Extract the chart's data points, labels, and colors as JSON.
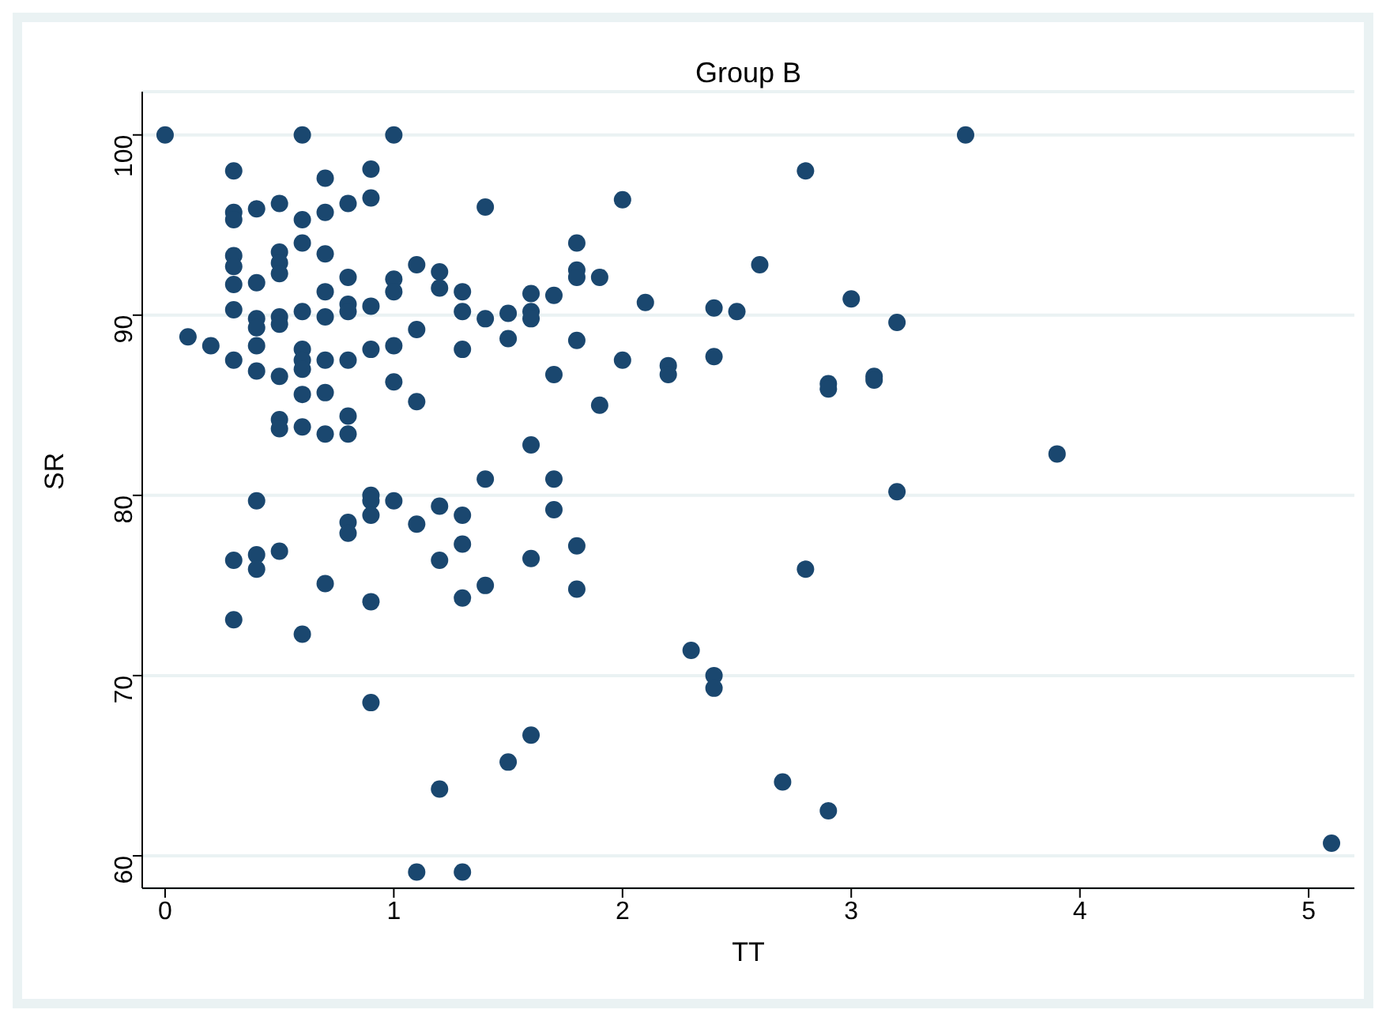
{
  "chart_data": {
    "type": "scatter",
    "title": "Group B",
    "xlabel": "TT",
    "ylabel": "SR",
    "x": [
      0,
      0.1,
      0.2,
      0.3,
      0.3,
      0.3,
      0.3,
      0.3,
      0.3,
      0.3,
      0.3,
      0.3,
      0.3,
      0.4,
      0.4,
      0.4,
      0.4,
      0.4,
      0.4,
      0.4,
      0.4,
      0.4,
      0.5,
      0.5,
      0.5,
      0.5,
      0.5,
      0.5,
      0.5,
      0.5,
      0.5,
      0.5,
      0.6,
      0.6,
      0.6,
      0.6,
      0.6,
      0.6,
      0.6,
      0.6,
      0.6,
      0.6,
      0.7,
      0.7,
      0.7,
      0.7,
      0.7,
      0.7,
      0.7,
      0.7,
      0.7,
      0.8,
      0.8,
      0.8,
      0.8,
      0.8,
      0.8,
      0.8,
      0.8,
      0.8,
      0.9,
      0.9,
      0.9,
      0.9,
      0.9,
      0.9,
      0.9,
      0.9,
      0.9,
      1.0,
      1.0,
      1.0,
      1.0,
      1.0,
      1.0,
      1.1,
      1.1,
      1.1,
      1.1,
      1.1,
      1.2,
      1.2,
      1.2,
      1.2,
      1.2,
      1.3,
      1.3,
      1.3,
      1.3,
      1.3,
      1.3,
      1.3,
      1.4,
      1.4,
      1.4,
      1.4,
      1.5,
      1.5,
      1.5,
      1.6,
      1.6,
      1.6,
      1.6,
      1.6,
      1.6,
      1.7,
      1.7,
      1.7,
      1.7,
      1.8,
      1.8,
      1.8,
      1.8,
      1.8,
      1.8,
      1.9,
      1.9,
      2.0,
      2.0,
      2.1,
      2.2,
      2.2,
      2.3,
      2.4,
      2.4,
      2.4,
      2.4,
      2.5,
      2.6,
      2.7,
      2.8,
      2.8,
      2.9,
      2.9,
      2.9,
      3.0,
      3.1,
      3.1,
      3.2,
      3.2,
      3.5,
      3.9,
      5.1
    ],
    "values": [
      100,
      88.8,
      88.3,
      98.0,
      95.7,
      95.3,
      93.3,
      92.7,
      91.7,
      90.3,
      87.5,
      76.4,
      73.1,
      95.9,
      91.8,
      89.8,
      89.3,
      88.3,
      86.9,
      79.7,
      76.7,
      75.9,
      96.2,
      93.5,
      92.9,
      92.3,
      89.9,
      89.5,
      86.6,
      84.2,
      83.7,
      76.9,
      100,
      95.3,
      94.0,
      90.2,
      88.1,
      87.5,
      87.0,
      85.6,
      83.8,
      72.3,
      97.6,
      95.7,
      93.4,
      91.3,
      89.9,
      87.5,
      85.7,
      83.4,
      75.1,
      96.2,
      92.1,
      90.6,
      90.2,
      87.5,
      84.4,
      83.4,
      78.5,
      77.9,
      98.1,
      96.5,
      90.5,
      88.1,
      80.0,
      79.7,
      78.9,
      74.1,
      68.5,
      100,
      92.0,
      91.3,
      88.3,
      86.3,
      79.7,
      92.8,
      89.2,
      85.2,
      78.4,
      59.1,
      92.4,
      91.5,
      79.4,
      76.4,
      63.7,
      91.3,
      90.2,
      88.1,
      78.9,
      77.3,
      74.3,
      59.1,
      96.0,
      89.8,
      80.9,
      75.0,
      90.1,
      88.7,
      65.2,
      91.2,
      90.2,
      89.8,
      82.8,
      76.5,
      66.7,
      91.1,
      86.7,
      80.9,
      79.2,
      94.0,
      92.5,
      92.1,
      88.6,
      77.2,
      74.8,
      92.1,
      85.0,
      96.4,
      87.5,
      90.7,
      87.2,
      86.7,
      71.4,
      90.4,
      87.7,
      70.0,
      69.3,
      90.2,
      92.8,
      64.1,
      98.0,
      75.9,
      86.2,
      85.9,
      62.5,
      90.9,
      86.6,
      86.4,
      89.6,
      80.2,
      100,
      82.3,
      60.7
    ],
    "color": "#1a476f",
    "marker": "circle",
    "xlim": [
      -0.1,
      5.2
    ],
    "xticks": [
      0,
      1,
      2,
      3,
      4,
      5
    ],
    "ylim": [
      58.2,
      102.4
    ],
    "yticks": [
      60,
      70,
      80,
      90,
      100
    ],
    "grid": "y",
    "legend": false
  }
}
